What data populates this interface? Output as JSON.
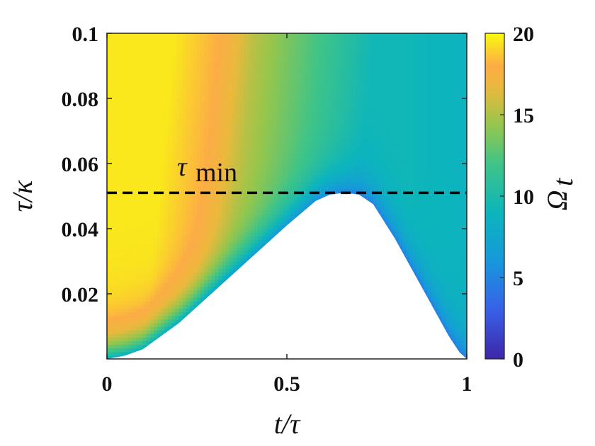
{
  "chart_data": {
    "type": "heatmap",
    "title": "",
    "xlabel": "t/τ",
    "ylabel": "τ/κ",
    "xlim": [
      0,
      1
    ],
    "ylim": [
      0,
      0.1
    ],
    "x_ticks": [
      "0",
      "0.5",
      "1"
    ],
    "x_tick_values": [
      0,
      0.5,
      1
    ],
    "y_ticks": [
      "0.02",
      "0.04",
      "0.06",
      "0.08",
      "0.1"
    ],
    "y_tick_values": [
      0.02,
      0.04,
      0.06,
      0.08,
      0.1
    ],
    "colorbar": {
      "label": "Ω_t",
      "label_main": "Ω",
      "label_sub": "t",
      "range": [
        0,
        20
      ],
      "ticks": [
        "0",
        "5",
        "10",
        "15",
        "20"
      ],
      "tick_values": [
        0,
        5,
        10,
        15,
        20
      ],
      "colormap": "parula"
    },
    "reference_line": {
      "y": 0.051,
      "style": "dashed",
      "color": "#000000",
      "label_main": "τ",
      "label_sub": "min"
    },
    "blank_region": {
      "description": "white (undefined) region below boundary",
      "boundary_x": [
        0.0,
        0.05,
        0.1,
        0.2,
        0.3,
        0.4,
        0.5,
        0.58,
        0.62,
        0.66,
        0.7,
        0.74,
        0.8,
        0.85,
        0.9,
        0.95,
        0.98,
        1.0
      ],
      "boundary_y": [
        0.0,
        0.001,
        0.003,
        0.011,
        0.021,
        0.031,
        0.041,
        0.0485,
        0.0505,
        0.051,
        0.0505,
        0.0475,
        0.037,
        0.027,
        0.017,
        0.007,
        0.002,
        0.0
      ]
    }
  }
}
